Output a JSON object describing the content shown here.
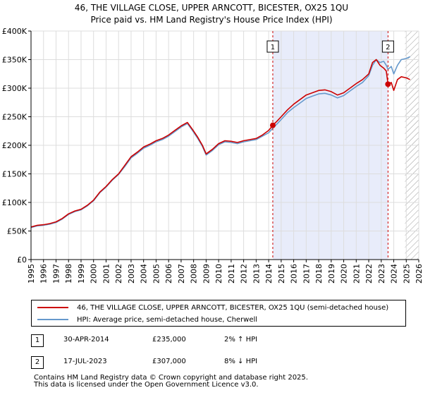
{
  "header": {
    "title_line1": "46, THE VILLAGE CLOSE, UPPER ARNCOTT, BICESTER, OX25 1QU",
    "title_line2": "Price paid vs. HM Land Registry's House Price Index (HPI)"
  },
  "colors": {
    "price_line": "#cc0000",
    "hpi_line": "#6699cc",
    "highlight": "#e8ecfa",
    "marker_line": "#cc0000",
    "hatch": "#999999"
  },
  "chart_data": {
    "type": "line",
    "title": "Price paid vs. HM Land Registry's House Price Index (HPI)",
    "xlabel": "",
    "ylabel": "",
    "xlim": [
      1995.0,
      2026.0
    ],
    "ylim": [
      0,
      400000
    ],
    "y_ticks": [
      {
        "value": 0,
        "label": "£0"
      },
      {
        "value": 50000,
        "label": "£50K"
      },
      {
        "value": 100000,
        "label": "£100K"
      },
      {
        "value": 150000,
        "label": "£150K"
      },
      {
        "value": 200000,
        "label": "£200K"
      },
      {
        "value": 250000,
        "label": "£250K"
      },
      {
        "value": 300000,
        "label": "£300K"
      },
      {
        "value": 350000,
        "label": "£350K"
      },
      {
        "value": 400000,
        "label": "£400K"
      }
    ],
    "x_ticks": [
      1995,
      1996,
      1997,
      1998,
      1999,
      2000,
      2001,
      2002,
      2003,
      2004,
      2005,
      2006,
      2007,
      2008,
      2009,
      2010,
      2011,
      2012,
      2013,
      2014,
      2015,
      2016,
      2017,
      2018,
      2019,
      2020,
      2021,
      2022,
      2023,
      2024,
      2025,
      2026
    ],
    "highlight_span": [
      2014.33,
      2023.54
    ],
    "forecast_start": 2024.9,
    "series": [
      {
        "name": "46, THE VILLAGE CLOSE, UPPER ARNCOTT, BICESTER, OX25 1QU (semi-detached house)",
        "color": "#cc0000",
        "x": [
          1995.0,
          1995.5,
          1996.0,
          1996.5,
          1997.0,
          1997.5,
          1998.0,
          1998.5,
          1999.0,
          1999.5,
          2000.0,
          2000.5,
          2001.0,
          2001.5,
          2002.0,
          2002.5,
          2003.0,
          2003.5,
          2004.0,
          2004.5,
          2005.0,
          2005.5,
          2006.0,
          2006.5,
          2007.0,
          2007.5,
          2007.9,
          2008.3,
          2008.7,
          2009.0,
          2009.5,
          2010.0,
          2010.5,
          2011.0,
          2011.5,
          2012.0,
          2012.5,
          2013.0,
          2013.5,
          2014.0,
          2014.33,
          2014.7,
          2015.0,
          2015.5,
          2016.0,
          2016.5,
          2017.0,
          2017.5,
          2018.0,
          2018.5,
          2019.0,
          2019.5,
          2020.0,
          2020.5,
          2021.0,
          2021.5,
          2022.0,
          2022.3,
          2022.6,
          2022.9,
          2023.2,
          2023.4,
          2023.54,
          2023.8,
          2024.0,
          2024.3,
          2024.6,
          2025.0,
          2025.3
        ],
        "values": [
          57000,
          60000,
          61000,
          63000,
          66000,
          72000,
          80000,
          85000,
          88000,
          95000,
          104000,
          118000,
          128000,
          140000,
          150000,
          165000,
          180000,
          188000,
          197000,
          202000,
          208000,
          212000,
          218000,
          226000,
          234000,
          240000,
          228000,
          215000,
          200000,
          185000,
          193000,
          203000,
          208000,
          207000,
          205000,
          208000,
          210000,
          212000,
          218000,
          226000,
          235000,
          243000,
          250000,
          262000,
          272000,
          280000,
          288000,
          292000,
          296000,
          297000,
          294000,
          288000,
          292000,
          300000,
          308000,
          315000,
          325000,
          345000,
          350000,
          340000,
          335000,
          330000,
          307000,
          310000,
          296000,
          315000,
          320000,
          318000,
          315000
        ]
      },
      {
        "name": "HPI: Average price, semi-detached house, Cherwell",
        "color": "#6699cc",
        "x": [
          1995.0,
          1995.5,
          1996.0,
          1996.5,
          1997.0,
          1997.5,
          1998.0,
          1998.5,
          1999.0,
          1999.5,
          2000.0,
          2000.5,
          2001.0,
          2001.5,
          2002.0,
          2002.5,
          2003.0,
          2003.5,
          2004.0,
          2004.5,
          2005.0,
          2005.5,
          2006.0,
          2006.5,
          2007.0,
          2007.5,
          2007.9,
          2008.3,
          2008.7,
          2009.0,
          2009.5,
          2010.0,
          2010.5,
          2011.0,
          2011.5,
          2012.0,
          2012.5,
          2013.0,
          2013.5,
          2014.0,
          2014.33,
          2014.7,
          2015.0,
          2015.5,
          2016.0,
          2016.5,
          2017.0,
          2017.5,
          2018.0,
          2018.5,
          2019.0,
          2019.5,
          2020.0,
          2020.5,
          2021.0,
          2021.5,
          2022.0,
          2022.3,
          2022.6,
          2022.9,
          2023.2,
          2023.4,
          2023.54,
          2023.8,
          2024.0,
          2024.3,
          2024.6,
          2025.0,
          2025.3
        ],
        "values": [
          56000,
          59000,
          60000,
          62000,
          65000,
          71000,
          79000,
          84000,
          87000,
          94000,
          103000,
          117000,
          127000,
          139000,
          149000,
          163000,
          178000,
          186000,
          195000,
          200000,
          206000,
          210000,
          216000,
          224000,
          232000,
          238000,
          226000,
          213000,
          198000,
          183000,
          191000,
          201000,
          206000,
          205000,
          203000,
          206000,
          208000,
          210000,
          216000,
          222000,
          230000,
          238000,
          245000,
          257000,
          266000,
          274000,
          282000,
          286000,
          290000,
          291000,
          288000,
          283000,
          287000,
          295000,
          303000,
          310000,
          322000,
          340000,
          350000,
          345000,
          347000,
          340000,
          333000,
          338000,
          325000,
          340000,
          350000,
          352000,
          355000
        ]
      }
    ],
    "sales": [
      {
        "label": "1",
        "x": 2014.33,
        "value": 235000
      },
      {
        "label": "2",
        "x": 2023.54,
        "value": 307000
      }
    ]
  },
  "legend": {
    "price_label": "46, THE VILLAGE CLOSE, UPPER ARNCOTT, BICESTER, OX25 1QU (semi-detached house)",
    "hpi_label": "HPI: Average price, semi-detached house, Cherwell"
  },
  "sales_table": [
    {
      "num": "1",
      "date": "30-APR-2014",
      "price": "£235,000",
      "hpi": "2% ↑ HPI"
    },
    {
      "num": "2",
      "date": "17-JUL-2023",
      "price": "£307,000",
      "hpi": "8% ↓ HPI"
    }
  ],
  "footer": {
    "line1": "Contains HM Land Registry data © Crown copyright and database right 2025.",
    "line2": "This data is licensed under the Open Government Licence v3.0."
  }
}
